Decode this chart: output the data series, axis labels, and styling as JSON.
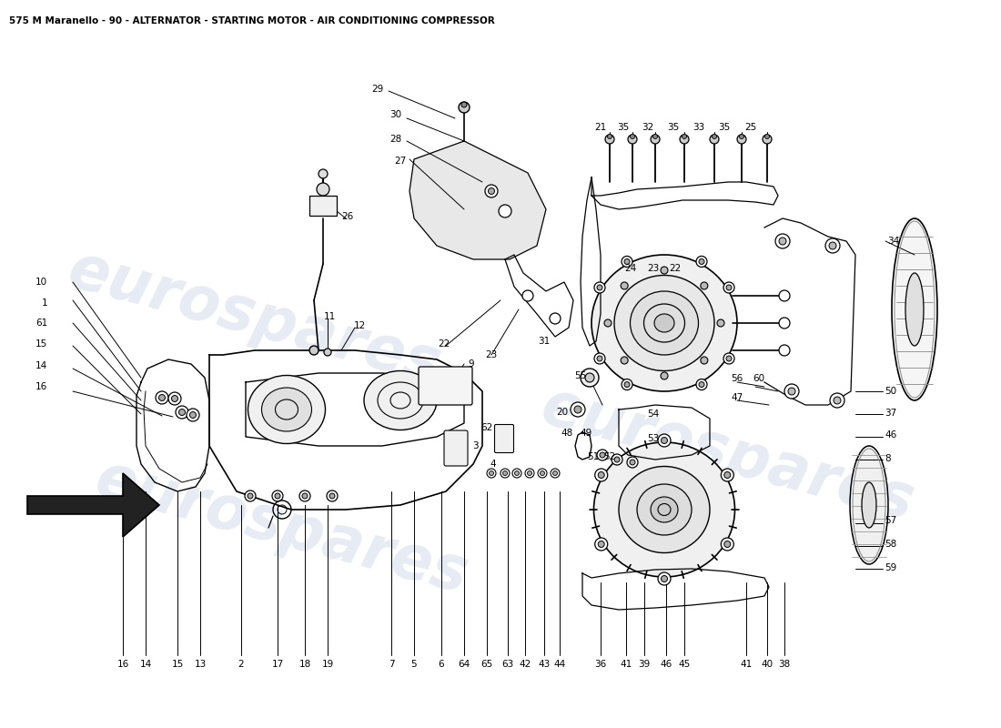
{
  "title": "575 M Maranello - 90 - ALTERNATOR - STARTING MOTOR - AIR CONDITIONING COMPRESSOR",
  "title_fontsize": 7.5,
  "background_color": "#ffffff",
  "watermark_text": "eurospares",
  "watermark_color": "#c8d4e8",
  "line_color": "#000000",
  "label_fontsize": 7.5,
  "fig_width": 11.0,
  "fig_height": 8.0
}
